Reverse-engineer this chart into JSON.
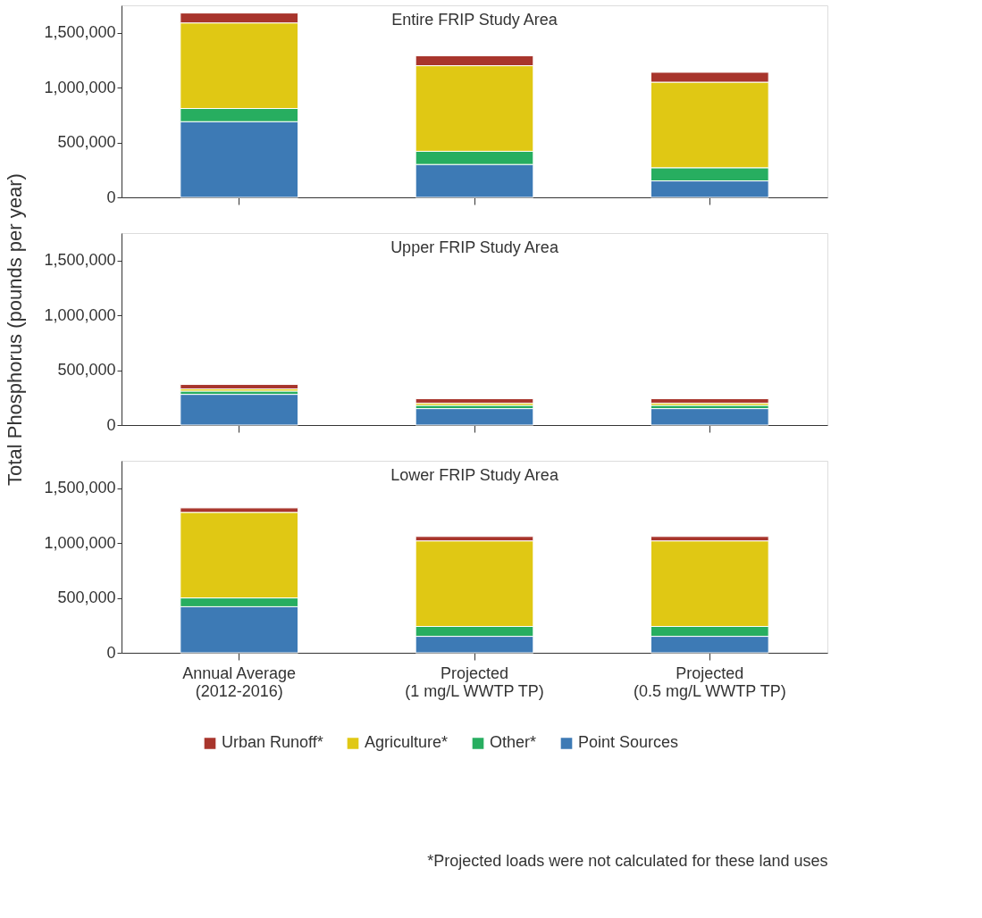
{
  "chart_data": [
    {
      "type": "bar",
      "stacked": true,
      "title": "Entire FRIP Study Area",
      "categories": [
        null,
        null,
        null
      ],
      "ylim": [
        0,
        1750000
      ],
      "yticks": [
        0,
        {
          "value": 500000,
          "label": "500,000"
        },
        {
          "value": 1000000,
          "label": "1,000,000"
        },
        {
          "value": 1500000,
          "label": "1,500,000"
        }
      ],
      "series": [
        {
          "color": "#3d7ab5",
          "values": [
            690000,
            300000,
            150000
          ]
        },
        {
          "color": "#27ae60",
          "values": [
            120000,
            120000,
            120000
          ]
        },
        {
          "color": "#e0c814",
          "values": [
            780000,
            780000,
            780000
          ]
        },
        {
          "color": "#a8352c",
          "values": [
            90000,
            90000,
            90000
          ]
        }
      ]
    },
    {
      "type": "bar",
      "stacked": true,
      "title": "Upper FRIP Study Area",
      "ylabel": "Total Phosphorus (pounds per year)",
      "categories": [
        null,
        null,
        null
      ],
      "ylim": [
        0,
        1750000
      ],
      "yticks": [
        0,
        {
          "value": 500000,
          "label": "500,000"
        },
        {
          "value": 1000000,
          "label": "1,000,000"
        },
        {
          "value": 1500000,
          "label": "1,500,000"
        }
      ],
      "series": [
        {
          "color": "#3d7ab5",
          "values": [
            280000,
            150000,
            150000
          ]
        },
        {
          "color": "#27ae60",
          "values": [
            30000,
            30000,
            30000
          ]
        },
        {
          "color": "#e0c814",
          "values": [
            20000,
            20000,
            20000
          ]
        },
        {
          "color": "#a8352c",
          "values": [
            40000,
            40000,
            40000
          ]
        }
      ]
    },
    {
      "type": "bar",
      "stacked": true,
      "title": "Lower FRIP Study Area",
      "categories": [
        "Annual Average\n(2012-2016)",
        "Projected\n(1 mg/L WWTP TP)",
        "Projected\n(0.5 mg/L WWTP TP)"
      ],
      "ylim": [
        0,
        1750000
      ],
      "yticks": [
        0,
        {
          "value": 500000,
          "label": "500,000"
        },
        {
          "value": 1000000,
          "label": "1,000,000"
        },
        {
          "value": 1500000,
          "label": "1,500,000"
        }
      ],
      "legend": "bottom",
      "annotations": [
        "*Projected loads were not calculated for these land uses"
      ],
      "series": [
        {
          "name": "Point Sources",
          "color": "#3d7ab5",
          "values": [
            420000,
            150000,
            150000
          ]
        },
        {
          "name": "Other*",
          "color": "#27ae60",
          "values": [
            80000,
            90000,
            90000
          ]
        },
        {
          "name": "Agriculture*",
          "color": "#e0c814",
          "values": [
            780000,
            780000,
            780000
          ]
        },
        {
          "name": "Urban Runoff*",
          "color": "#a8352c",
          "values": [
            40000,
            40000,
            40000
          ]
        }
      ]
    }
  ]
}
